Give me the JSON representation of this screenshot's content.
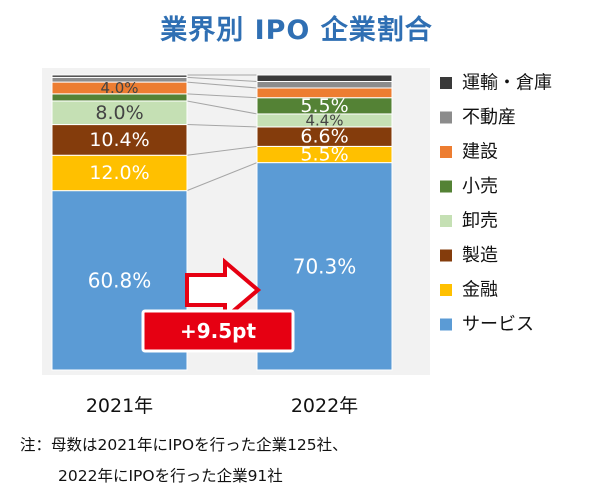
{
  "chart_data": {
    "type": "bar",
    "stacked": true,
    "normalized": true,
    "title": "業界別 IPO 企業割合",
    "categories": [
      "2021年",
      "2022年"
    ],
    "series": [
      {
        "name": "サービス",
        "values": [
          60.8,
          70.3
        ],
        "color": "#5b9bd5",
        "labels": [
          "60.8%",
          "70.3%"
        ]
      },
      {
        "name": "金融",
        "values": [
          12.0,
          5.5
        ],
        "color": "#ffc000",
        "labels": [
          "12.0%",
          "5.5%"
        ]
      },
      {
        "name": "製造",
        "values": [
          10.4,
          6.6
        ],
        "color": "#843c0c",
        "labels": [
          "10.4%",
          "6.6%"
        ]
      },
      {
        "name": "卸売",
        "values": [
          8.0,
          4.4
        ],
        "color": "#c5e0b4",
        "labels": [
          "8.0%",
          "4.4%"
        ]
      },
      {
        "name": "小売",
        "values": [
          2.4,
          5.5
        ],
        "color": "#548235",
        "labels": [
          "",
          "5.5%"
        ]
      },
      {
        "name": "建設",
        "values": [
          4.0,
          3.3
        ],
        "color": "#ed7d31",
        "labels": [
          "4.0%",
          ""
        ]
      },
      {
        "name": "不動産",
        "values": [
          1.6,
          2.2
        ],
        "color": "#8c8c8c",
        "labels": [
          "",
          ""
        ]
      },
      {
        "name": "運輸・倉庫",
        "values": [
          0.8,
          2.2
        ],
        "color": "#3a3a3a",
        "labels": [
          "",
          ""
        ]
      }
    ],
    "legend_position": "right",
    "legend_order": [
      "運輸・倉庫",
      "不動産",
      "建設",
      "小売",
      "卸売",
      "製造",
      "金融",
      "サービス"
    ],
    "annotation": {
      "text": "+9.5pt",
      "color": "#e60012"
    }
  },
  "notes": {
    "line1": "注：母数は2021年にIPOを行った企業125社、",
    "line2": "2022年にIPOを行った企業91社"
  }
}
